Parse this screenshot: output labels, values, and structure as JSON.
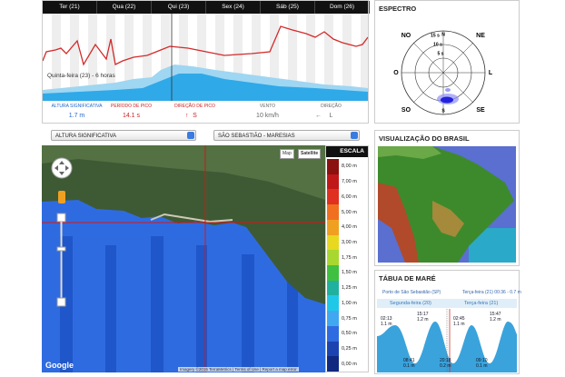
{
  "forecast": {
    "days": [
      "Ter (21)",
      "Qua (22)",
      "Qui (23)",
      "Sex (24)",
      "Sáb (25)",
      "Dom (26)"
    ],
    "caption": "Quinta-feira (23) - 6 horas",
    "metrics": [
      {
        "label": "ALTURA SIGNIFICATIVA",
        "value": "1.7 m"
      },
      {
        "label": "PERÍODO DE PICO",
        "value": "14.1 s"
      },
      {
        "label": "DIREÇÃO DE PICO",
        "value": "S"
      },
      {
        "label": "VENTO",
        "value": "10 km/h"
      },
      {
        "label": "DIREÇÃO",
        "value": "L"
      }
    ]
  },
  "spectrum": {
    "title": "ESPECTRO",
    "directions": [
      "N",
      "NE",
      "L",
      "SE",
      "S",
      "SO",
      "O",
      "NO"
    ],
    "rings": [
      "15 s",
      "10 s",
      "5 s"
    ]
  },
  "controls": {
    "variable": "ALTURA SIGNIFICATIVA",
    "location": "SÃO SEBASTIÃO - MARESIAS"
  },
  "map": {
    "buttons": [
      "Map",
      "Satellite"
    ],
    "logo": "Google",
    "attribution": "Imagery ©2015 TerraMetrics",
    "links": [
      "Terms of Use",
      "Report a map error"
    ]
  },
  "scale": {
    "title": "ESCALA",
    "labels": [
      "8,00 m",
      "7,00 m",
      "6,00 m",
      "5,00 m",
      "4,00 m",
      "3,00 m",
      "1,75 m",
      "1,50 m",
      "1,25 m",
      "1,00 m",
      "0,75 m",
      "0,50 m",
      "0,25 m",
      "0,00 m"
    ]
  },
  "brazil": {
    "title": "VISUALIZAÇÃO DO BRASIL"
  },
  "tide": {
    "title": "TÁBUA DE MARÉ",
    "station": "Porto de São Sebastião (SP)",
    "current": "Terça-feira (21) 00:36 - 0.7 m",
    "days": [
      "Segunda-feira (20)",
      "Terça-feira (21)"
    ],
    "highs": [
      {
        "time": "02:13",
        "height": "1.1 m"
      },
      {
        "time": "15:17",
        "height": "1.2 m"
      },
      {
        "time": "02:45",
        "height": "1.1 m"
      },
      {
        "time": "15:47",
        "height": "1.2 m"
      }
    ],
    "lows": [
      {
        "time": "08:41",
        "height": "0.1 m"
      },
      {
        "time": "20:18",
        "height": "0.2 m"
      },
      {
        "time": "09:10",
        "height": "0.1 m"
      }
    ]
  }
}
